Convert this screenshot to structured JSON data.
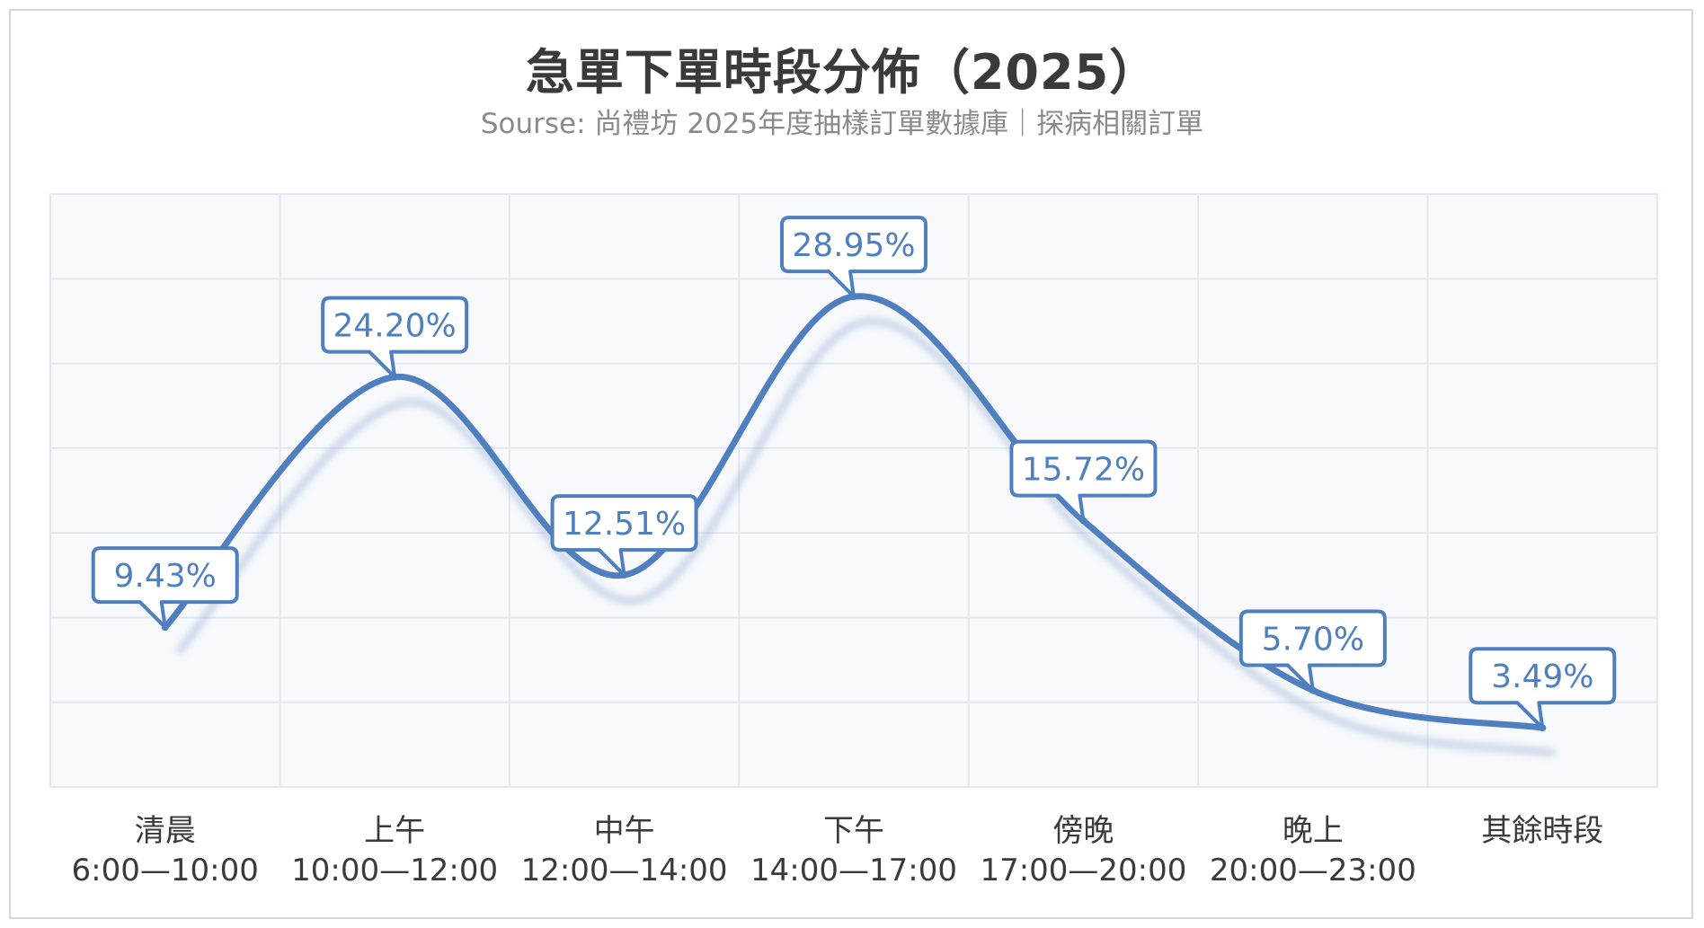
{
  "chart_data": {
    "type": "line",
    "title": "急單下單時段分佈（2025）",
    "subtitle": "Sourse: 尚禮坊 2025年度抽樣訂單數據庫｜探病相關訂單",
    "categories": [
      [
        "清晨",
        "6:00—10:00"
      ],
      [
        "上午",
        "10:00—12:00"
      ],
      [
        "中午",
        "12:00—14:00"
      ],
      [
        "下午",
        "14:00—17:00"
      ],
      [
        "傍晚",
        "17:00—20:00"
      ],
      [
        "晚上",
        "20:00—23:00"
      ],
      [
        "其餘時段"
      ]
    ],
    "values": [
      9.43,
      24.2,
      12.51,
      28.95,
      15.72,
      5.7,
      3.49
    ],
    "value_labels": [
      "9.43%",
      "24.20%",
      "12.51%",
      "28.95%",
      "15.72%",
      "5.70%",
      "3.49%"
    ],
    "ylim": [
      0,
      35
    ],
    "grid": true,
    "colors": {
      "line": "#4f7fbf",
      "label_border": "#4f7fbf",
      "label_text": "#4f7fbf",
      "plot_bg": "#f7f9fc",
      "grid": "#e3e8ef"
    }
  }
}
